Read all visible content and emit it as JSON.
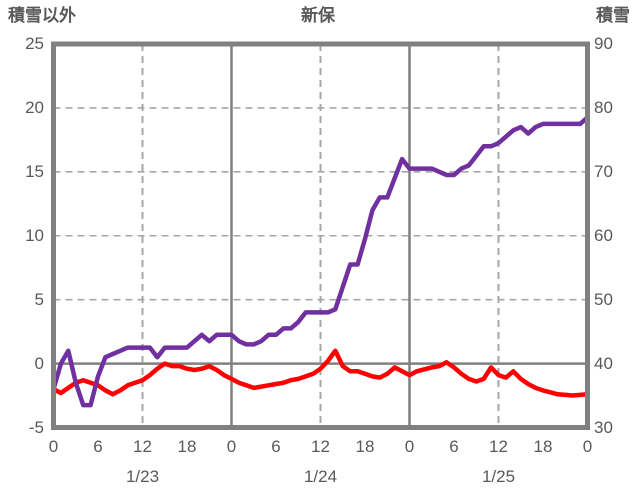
{
  "header": {
    "left_axis_title": "積雪以外",
    "station_title": "新保",
    "right_axis_title": "積雪"
  },
  "colors": {
    "snow_depth_line": "#7030A0",
    "other_line": "#FF0000",
    "grid": "#A6A6A6",
    "axis_frame": "#808080",
    "text": "#595959",
    "background": "#FFFFFF"
  },
  "chart_data": {
    "type": "line",
    "title": "新保",
    "grid": "on",
    "legend_position": "none",
    "left_axis": {
      "title": "積雪以外",
      "min": -5,
      "max": 25,
      "ticks": [
        25,
        20,
        15,
        10,
        5,
        0,
        -5
      ],
      "grid_dashed_levels": [
        20,
        15,
        10,
        5
      ],
      "grid_solid_levels": [
        0
      ]
    },
    "right_axis": {
      "title": "積雪",
      "min": 30,
      "max": 90,
      "ticks": [
        90,
        80,
        70,
        60,
        50,
        40,
        30
      ]
    },
    "x_axis": {
      "hours_total": 72,
      "tick_interval_hours": 6,
      "tick_labels": [
        "0",
        "6",
        "12",
        "18",
        "0",
        "6",
        "12",
        "18",
        "0",
        "6",
        "12",
        "18",
        "0"
      ],
      "date_labels": [
        {
          "label": "1/23",
          "hour": 12
        },
        {
          "label": "1/24",
          "hour": 36
        },
        {
          "label": "1/25",
          "hour": 60
        }
      ],
      "grid_dashed_hours": [
        12,
        36,
        60
      ],
      "grid_solid_hours": [
        24,
        48
      ]
    },
    "series": [
      {
        "name": "積雪以外",
        "axis": "left",
        "color": "#FF0000",
        "x_start_hour": 0,
        "step_hours": 1,
        "values": [
          -2.0,
          -2.3,
          -1.9,
          -1.5,
          -1.3,
          -1.5,
          -1.7,
          -2.1,
          -2.4,
          -2.1,
          -1.7,
          -1.5,
          -1.3,
          -0.9,
          -0.4,
          0.0,
          -0.2,
          -0.2,
          -0.4,
          -0.5,
          -0.4,
          -0.2,
          -0.5,
          -0.9,
          -1.2,
          -1.5,
          -1.7,
          -1.9,
          -1.8,
          -1.7,
          -1.6,
          -1.5,
          -1.3,
          -1.2,
          -1.0,
          -0.8,
          -0.4,
          0.2,
          1.0,
          -0.2,
          -0.6,
          -0.6,
          -0.8,
          -1.0,
          -1.1,
          -0.8,
          -0.3,
          -0.6,
          -0.9,
          -0.6,
          -0.45,
          -0.3,
          -0.2,
          0.1,
          -0.3,
          -0.8,
          -1.2,
          -1.4,
          -1.2,
          -0.3,
          -0.9,
          -1.1,
          -0.6,
          -1.2,
          -1.6,
          -1.9,
          -2.1,
          -2.25,
          -2.4,
          -2.45,
          -2.5,
          -2.45,
          -2.4
        ]
      },
      {
        "name": "積雪",
        "axis": "right",
        "color": "#7030A0",
        "x_start_hour": 0,
        "step_hours": 1,
        "values": [
          36,
          40,
          42,
          37,
          33.5,
          33.5,
          38,
          41,
          41.5,
          42,
          42.5,
          42.5,
          42.5,
          42.5,
          41,
          42.5,
          42.5,
          42.5,
          42.5,
          43.5,
          44.5,
          43.5,
          44.5,
          44.5,
          44.5,
          43.5,
          43,
          43,
          43.5,
          44.5,
          44.5,
          45.5,
          45.5,
          46.5,
          48,
          48,
          48,
          48,
          48.5,
          52,
          55.5,
          55.5,
          59.5,
          64,
          66,
          66,
          69,
          72,
          70.5,
          70.5,
          70.5,
          70.5,
          70,
          69.5,
          69.5,
          70.5,
          71,
          72.5,
          74,
          74,
          74.5,
          75.5,
          76.5,
          77,
          76,
          77,
          77.5,
          77.5,
          77.5,
          77.5,
          77.5,
          77.5,
          78.5
        ]
      }
    ]
  }
}
